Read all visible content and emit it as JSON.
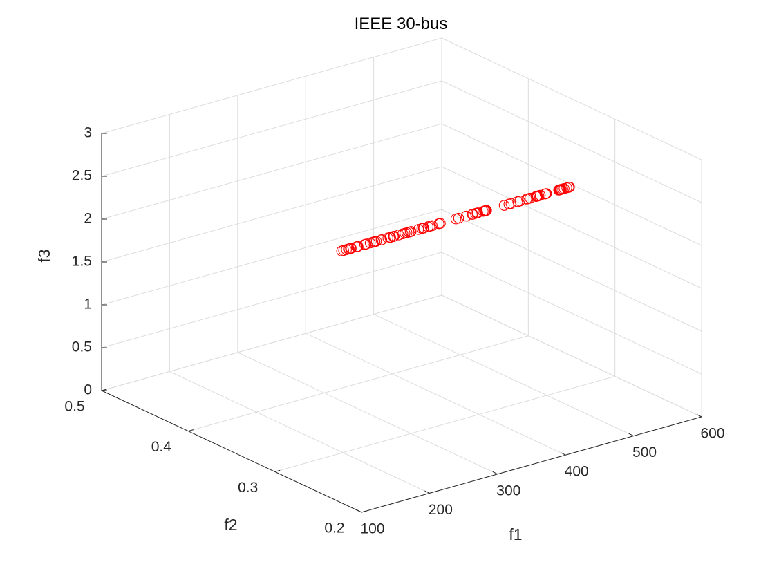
{
  "colors": {
    "marker": "#ff0000",
    "axis": "#262626",
    "grid": "#dcdcdc"
  },
  "chart_data": {
    "type": "scatter",
    "projection": "3d",
    "title": "IEEE 30-bus",
    "xlabel": "f1",
    "ylabel": "f2",
    "zlabel": "f3",
    "xlim": [
      100,
      600
    ],
    "ylim": [
      0.2,
      0.5
    ],
    "zlim": [
      0,
      3
    ],
    "xticks": [
      "100",
      "200",
      "300",
      "400",
      "500",
      "600"
    ],
    "yticks": [
      "0.2",
      "0.3",
      "0.4",
      "0.5"
    ],
    "zticks": [
      "0",
      "0.5",
      "1",
      "1.5",
      "2",
      "2.5",
      "3"
    ],
    "grid": true,
    "marker": "circle-open",
    "series": [
      {
        "x": [
          94,
          97,
          101,
          104,
          105,
          107,
          108,
          116,
          117,
          118,
          128,
          130,
          136,
          140,
          142,
          143,
          145,
          152,
          153,
          162,
          165,
          166,
          170,
          170,
          171,
          178,
          184,
          187,
          190,
          193,
          195,
          196,
          207,
          212,
          214,
          215,
          221,
          224,
          227,
          237,
          239,
          262,
          266,
          277,
          286,
          287,
          291,
          293,
          294,
          302,
          304,
          305,
          306,
          307,
          333,
          340,
          343,
          353,
          356,
          366,
          368,
          371,
          380,
          380,
          381,
          382,
          384,
          386,
          393,
          394,
          395,
          413,
          414,
          415,
          416,
          417,
          419,
          421,
          425,
          428,
          429
        ],
        "y": [
          0.2182,
          0.2182,
          0.2182,
          0.2182,
          0.2182,
          0.2182,
          0.2182,
          0.2182,
          0.2182,
          0.2182,
          0.2182,
          0.2182,
          0.2182,
          0.2182,
          0.2182,
          0.2182,
          0.2182,
          0.2182,
          0.2182,
          0.2182,
          0.2182,
          0.2182,
          0.2182,
          0.2182,
          0.2182,
          0.2182,
          0.2182,
          0.2182,
          0.2182,
          0.2182,
          0.2182,
          0.2182,
          0.2182,
          0.2182,
          0.2182,
          0.2182,
          0.2182,
          0.2182,
          0.2182,
          0.2182,
          0.2182,
          0.2182,
          0.2182,
          0.2182,
          0.2182,
          0.2182,
          0.2182,
          0.2182,
          0.2182,
          0.2182,
          0.2182,
          0.2182,
          0.2182,
          0.2182,
          0.2182,
          0.2182,
          0.2182,
          0.2182,
          0.2182,
          0.2182,
          0.2182,
          0.2182,
          0.2182,
          0.2182,
          0.2182,
          0.2182,
          0.2182,
          0.2182,
          0.2182,
          0.2182,
          0.2182,
          0.2182,
          0.2182,
          0.2182,
          0.2182,
          0.2182,
          0.2182,
          0.2182,
          0.2182,
          0.2182,
          0.2182
        ],
        "z": [
          2.975,
          2.975,
          2.975,
          2.975,
          2.975,
          2.975,
          2.975,
          2.975,
          2.975,
          2.975,
          2.975,
          2.975,
          2.975,
          2.975,
          2.975,
          2.975,
          2.975,
          2.975,
          2.975,
          2.975,
          2.975,
          2.975,
          2.975,
          2.975,
          2.975,
          2.975,
          2.975,
          2.975,
          2.975,
          2.975,
          2.975,
          2.975,
          2.975,
          2.975,
          2.975,
          2.975,
          2.975,
          2.975,
          2.975,
          2.975,
          2.975,
          2.975,
          2.975,
          2.975,
          2.975,
          2.975,
          2.975,
          2.975,
          2.975,
          2.975,
          2.975,
          2.975,
          2.975,
          2.975,
          2.975,
          2.975,
          2.975,
          2.975,
          2.975,
          2.975,
          2.975,
          2.975,
          2.975,
          2.975,
          2.975,
          2.975,
          2.975,
          2.975,
          2.975,
          2.975,
          2.975,
          2.975,
          2.975,
          2.975,
          2.975,
          2.975,
          2.975,
          2.975,
          2.975,
          2.975,
          2.975
        ]
      }
    ]
  }
}
